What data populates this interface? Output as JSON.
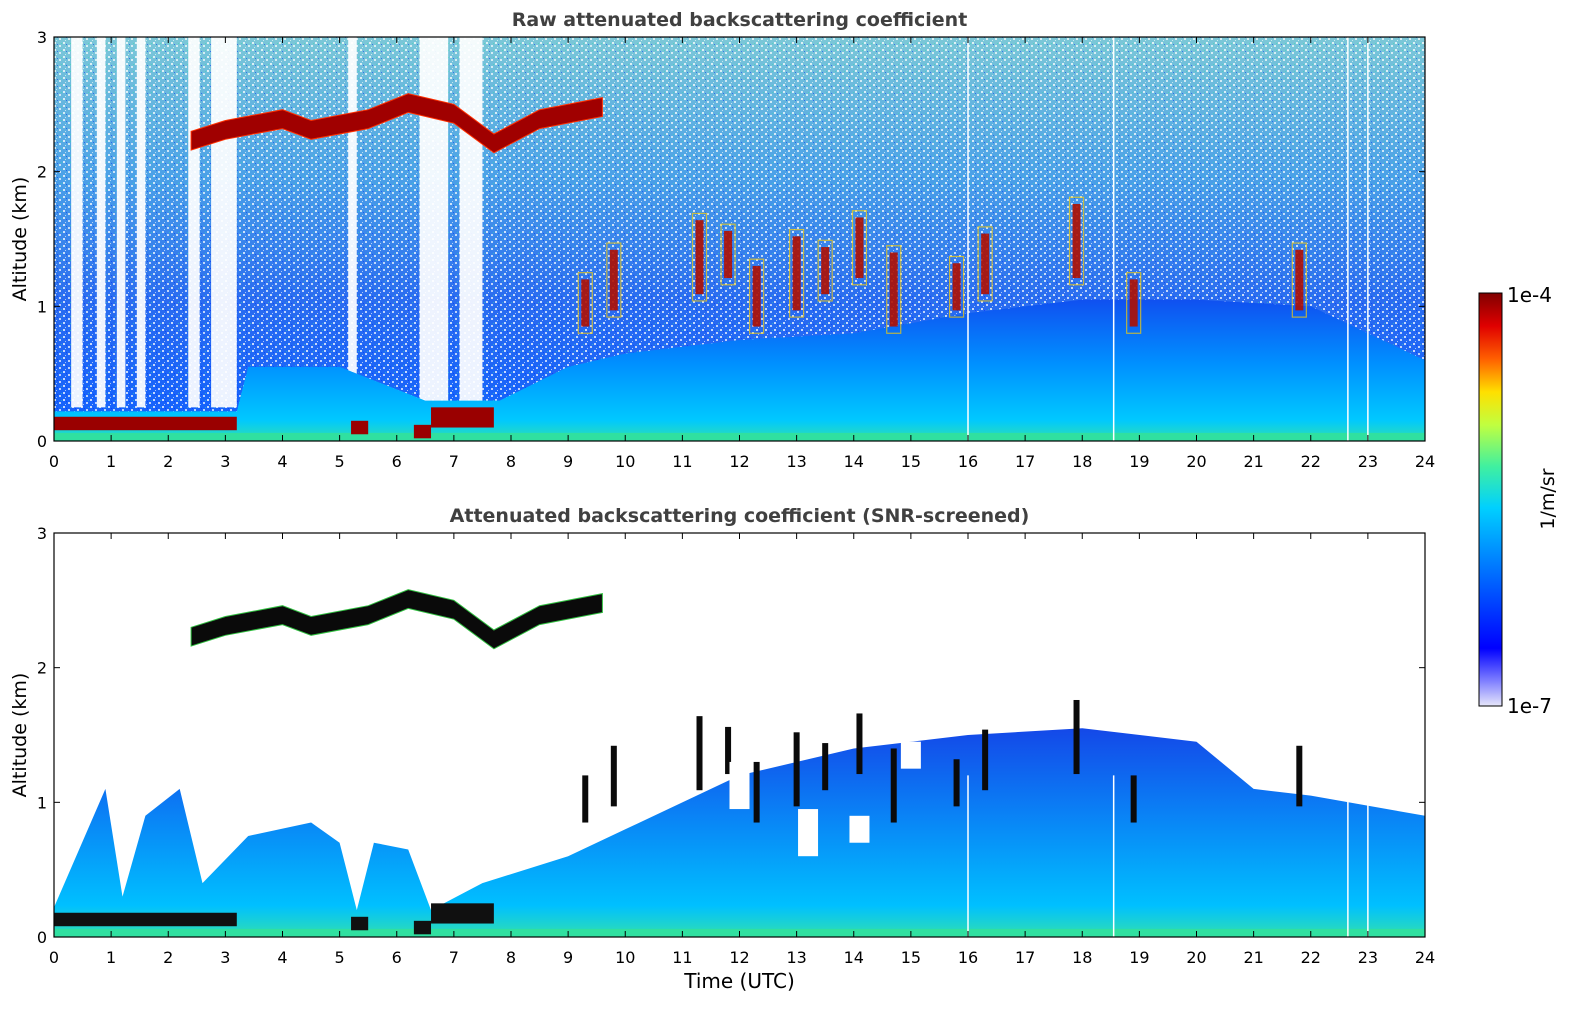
{
  "chart_data": [
    {
      "type": "heatmap",
      "title": "Raw attenuated backscattering coefficient",
      "xlabel": "",
      "ylabel": "Altitude (km)",
      "xlim": [
        0,
        24
      ],
      "ylim": [
        0,
        3
      ],
      "x_ticks": [
        "0",
        "1",
        "2",
        "3",
        "4",
        "5",
        "6",
        "7",
        "8",
        "9",
        "10",
        "11",
        "12",
        "13",
        "14",
        "15",
        "16",
        "17",
        "18",
        "19",
        "20",
        "21",
        "22",
        "23",
        "24"
      ],
      "y_ticks": [
        "0",
        "1",
        "2",
        "3"
      ],
      "layers": {
        "boundary_layer_top_km": [
          [
            0,
            0.22
          ],
          [
            3.2,
            0.22
          ],
          [
            3.4,
            0.55
          ],
          [
            5,
            0.55
          ],
          [
            6.5,
            0.3
          ],
          [
            7.8,
            0.3
          ],
          [
            9,
            0.55
          ],
          [
            10,
            0.65
          ],
          [
            12,
            0.75
          ],
          [
            14,
            0.8
          ],
          [
            16,
            0.95
          ],
          [
            18,
            1.05
          ],
          [
            20,
            1.05
          ],
          [
            22,
            1.0
          ],
          [
            24,
            0.6
          ]
        ],
        "low_cloud_segments": [
          {
            "x": [
              0,
              3.2
            ],
            "base_km": 0.08,
            "top_km": 0.18
          },
          {
            "x": [
              5.2,
              5.5
            ],
            "base_km": 0.05,
            "top_km": 0.15
          },
          {
            "x": [
              6.3,
              6.6
            ],
            "base_km": 0.02,
            "top_km": 0.12
          },
          {
            "x": [
              6.6,
              7.7
            ],
            "base_km": 0.1,
            "top_km": 0.25
          }
        ],
        "elevated_cloud_layer": [
          [
            2.4,
            2.22
          ],
          [
            3.0,
            2.3
          ],
          [
            4.0,
            2.38
          ],
          [
            4.5,
            2.3
          ],
          [
            5.5,
            2.38
          ],
          [
            6.2,
            2.5
          ],
          [
            7.0,
            2.42
          ],
          [
            7.7,
            2.2
          ],
          [
            8.5,
            2.38
          ],
          [
            9.6,
            2.47
          ]
        ],
        "convective_cloud_x": [
          9.3,
          9.8,
          11.3,
          11.8,
          12.3,
          13.0,
          13.5,
          14.1,
          14.7,
          15.8,
          16.3,
          17.9,
          18.9,
          21.8
        ],
        "data_gaps_x": [
          16.0,
          18.55,
          22.65,
          23.0
        ]
      }
    },
    {
      "type": "heatmap",
      "title": "Attenuated backscattering coefficient (SNR-screened)",
      "xlabel": "Time (UTC)",
      "ylabel": "Altitude (km)",
      "xlim": [
        0,
        24
      ],
      "ylim": [
        0,
        3
      ],
      "x_ticks": [
        "0",
        "1",
        "2",
        "3",
        "4",
        "5",
        "6",
        "7",
        "8",
        "9",
        "10",
        "11",
        "12",
        "13",
        "14",
        "15",
        "16",
        "17",
        "18",
        "19",
        "20",
        "21",
        "22",
        "23",
        "24"
      ],
      "y_ticks": [
        "0",
        "1",
        "2",
        "3"
      ],
      "screened": true,
      "signal_top_km": [
        [
          0,
          0.22
        ],
        [
          0.9,
          1.1
        ],
        [
          1.2,
          0.3
        ],
        [
          1.6,
          0.9
        ],
        [
          2.2,
          1.1
        ],
        [
          2.6,
          0.4
        ],
        [
          3.4,
          0.75
        ],
        [
          4.5,
          0.85
        ],
        [
          5,
          0.7
        ],
        [
          5.3,
          0.2
        ],
        [
          5.6,
          0.7
        ],
        [
          6.2,
          0.65
        ],
        [
          6.6,
          0.2
        ],
        [
          7.5,
          0.4
        ],
        [
          9,
          0.6
        ],
        [
          10,
          0.8
        ],
        [
          12,
          1.2
        ],
        [
          14,
          1.4
        ],
        [
          16,
          1.5
        ],
        [
          18,
          1.55
        ],
        [
          20,
          1.45
        ],
        [
          21,
          1.1
        ],
        [
          22,
          1.05
        ],
        [
          24,
          0.9
        ]
      ]
    }
  ],
  "colorbar": {
    "label": "1/m/sr",
    "max_label": "1e-4",
    "min_label": "1e-7",
    "scale": "log",
    "colormap": "jet",
    "colors": [
      "#e6e6fa",
      "#0000ff",
      "#0080ff",
      "#00d0ff",
      "#40f0a0",
      "#c0ff40",
      "#ffe000",
      "#ff6000",
      "#e00000",
      "#800000"
    ]
  }
}
